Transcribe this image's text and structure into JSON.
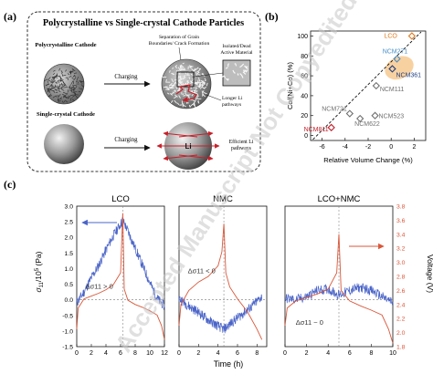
{
  "watermark": "Accepted Manuscript Not Copyedited",
  "panel_a": {
    "label": "(a)",
    "title": "Polycrystalline vs Single-crystal Cathode Particles",
    "poly_label": "Polycrystalline Cathode",
    "single_label": "Single-crystal Cathode",
    "charging_1": "Charging",
    "charging_2": "Charging",
    "grain_note": [
      "Separation of Grain",
      "Boundaries/ Crack Formation"
    ],
    "isolated_note": [
      "Isolated/Dead",
      "Active Material"
    ],
    "longer_note": [
      "Longer Li",
      "pathways"
    ],
    "efficient_note": [
      "Efficient Li",
      "pathways"
    ],
    "li_label": "Li"
  },
  "chart_data": [
    {
      "panel": "(b)",
      "type": "scatter",
      "xlabel": "Relative Volume Change (%)",
      "ylabel": "Co/(Ni+Co) (%)",
      "xlim": [
        -7,
        3
      ],
      "ylim": [
        -5,
        105
      ],
      "xticks": [
        -6,
        -4,
        -2,
        0,
        2
      ],
      "yticks": [
        0,
        20,
        40,
        60,
        80,
        100
      ],
      "points": [
        {
          "name": "LCO",
          "x": 1.8,
          "y": 100,
          "color": "#e07b1f"
        },
        {
          "name": "NCM271",
          "x": 0.5,
          "y": 77,
          "color": "#4a90c8"
        },
        {
          "name": "NCM361",
          "x": 0.1,
          "y": 67,
          "color": "#1f3f80"
        },
        {
          "name": "NCM111",
          "x": -1.3,
          "y": 50,
          "color": "#707070"
        },
        {
          "name": "NCM721",
          "x": -3.6,
          "y": 22,
          "color": "#707070"
        },
        {
          "name": "NCM523",
          "x": -1.4,
          "y": 20,
          "color": "#707070"
        },
        {
          "name": "NCM622",
          "x": -2.7,
          "y": 17,
          "color": "#707070"
        },
        {
          "name": "NCM811",
          "x": -5.2,
          "y": 8,
          "color": "#c0202a"
        }
      ],
      "trendline": {
        "x": [
          -6.8,
          2.6
        ],
        "y": [
          -4,
          104
        ]
      },
      "highlight_ellipse": {
        "cx": 0.7,
        "cy": 68,
        "rx": 1.3,
        "ry": 11,
        "color": "#f7c98f"
      }
    },
    {
      "panel": "(c)",
      "type": "line",
      "xlabel": "Time (h)",
      "ylabel": "σ11/10^5 (Pa)",
      "ylabel_right": "Voltage (V)",
      "ylim": [
        -1.5,
        3.0
      ],
      "ylim_right": [
        1.8,
        3.8
      ],
      "yticks": [
        -1.5,
        -1.0,
        -0.5,
        0.0,
        0.5,
        1.0,
        1.5,
        2.0,
        2.5,
        3.0
      ],
      "yticks_right": [
        1.8,
        2.0,
        2.2,
        2.4,
        2.6,
        2.8,
        3.0,
        3.2,
        3.4,
        3.6,
        3.8
      ],
      "subplots": [
        {
          "title": "LCO",
          "xlim": [
            0,
            12
          ],
          "xticks": [
            0,
            2,
            4,
            6,
            8,
            10,
            12
          ],
          "charge_end": 6.3,
          "stress_annotation": "Δσ11 > 0",
          "stress": {
            "x": [
              0,
              1,
              2,
              3,
              4,
              5,
              6.3,
              7,
              8,
              9,
              10,
              11,
              12
            ],
            "y": [
              -0.1,
              0.25,
              0.7,
              1.1,
              1.6,
              2.05,
              2.55,
              2.2,
              1.65,
              1.1,
              0.55,
              0.05,
              -0.2
            ]
          },
          "voltage": {
            "x": [
              0,
              0.2,
              1,
              2,
              3,
              4,
              5,
              6,
              6.3,
              6.5,
              7,
              8,
              9,
              10,
              11,
              11.6,
              12
            ],
            "y": [
              2.05,
              2.35,
              2.48,
              2.52,
              2.56,
              2.61,
              2.68,
              2.85,
              3.7,
              2.62,
              2.46,
              2.4,
              2.36,
              2.31,
              2.25,
              2.1,
              1.9
            ]
          }
        },
        {
          "title": "NMC",
          "xlim": [
            0,
            9
          ],
          "xticks": [
            0,
            2,
            4,
            6,
            8
          ],
          "charge_end": 4.6,
          "stress_annotation": "Δσ11 < 0",
          "stress": {
            "x": [
              0,
              1,
              2,
              3,
              4.6,
              5.5,
              6.5,
              7.5,
              8.5
            ],
            "y": [
              0.05,
              -0.2,
              -0.4,
              -0.65,
              -0.95,
              -0.7,
              -0.45,
              -0.2,
              0.1
            ]
          },
          "voltage": {
            "x": [
              0,
              0.2,
              1,
              2,
              3,
              4,
              4.4,
              4.6,
              4.8,
              5.2,
              6,
              7,
              8,
              8.5
            ],
            "y": [
              2.1,
              2.4,
              2.6,
              2.72,
              2.8,
              2.95,
              3.15,
              3.55,
              2.85,
              2.65,
              2.48,
              2.3,
              2.05,
              1.9
            ]
          }
        },
        {
          "title": "LCO+NMC",
          "xlim": [
            0,
            10
          ],
          "xticks": [
            0,
            2,
            4,
            6,
            8,
            10
          ],
          "charge_end": 5.0,
          "stress_annotation": "Δσ11 ~ 0",
          "stress": {
            "x": [
              0,
              1,
              2,
              3,
              4,
              5,
              6,
              7,
              8,
              9,
              10
            ],
            "y": [
              0.05,
              0.0,
              0.1,
              0.3,
              0.35,
              0.15,
              0.3,
              0.4,
              0.3,
              0.1,
              -0.1
            ]
          },
          "voltage": {
            "x": [
              0,
              0.2,
              1,
              2,
              3,
              4,
              4.8,
              5.0,
              5.2,
              6,
              7,
              8,
              9,
              9.6,
              10
            ],
            "y": [
              2.1,
              2.35,
              2.45,
              2.5,
              2.55,
              2.62,
              2.85,
              3.4,
              2.6,
              2.45,
              2.38,
              2.32,
              2.25,
              2.05,
              1.85
            ]
          }
        }
      ]
    }
  ]
}
